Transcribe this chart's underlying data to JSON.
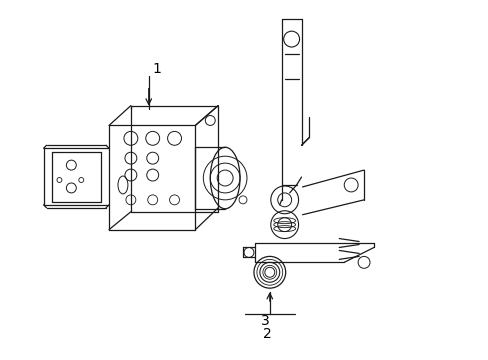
{
  "background_color": "#ffffff",
  "line_color": "#1a1a1a",
  "label_color": "#000000",
  "figure_width": 4.89,
  "figure_height": 3.6,
  "dpi": 100
}
